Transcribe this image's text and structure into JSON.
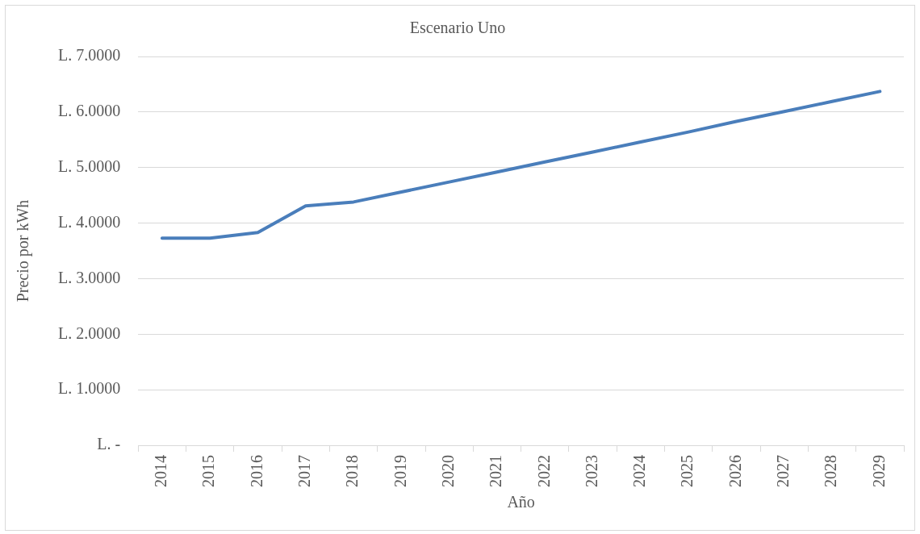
{
  "chart_data": {
    "type": "line",
    "title": "Escenario Uno",
    "xlabel": "Año",
    "ylabel": "Precio por kWh",
    "categories": [
      "2014",
      "2015",
      "2016",
      "2017",
      "2018",
      "2019",
      "2020",
      "2021",
      "2022",
      "2023",
      "2024",
      "2025",
      "2026",
      "2027",
      "2028",
      "2029"
    ],
    "series": [
      {
        "color": "#4a7ebb",
        "values": [
          3.73,
          3.73,
          3.83,
          4.31,
          4.38,
          4.56,
          4.74,
          4.92,
          5.1,
          5.28,
          5.46,
          5.64,
          5.83,
          6.01,
          6.19,
          6.37
        ]
      }
    ],
    "ylim": [
      0,
      7
    ],
    "yticks": [
      {
        "value": 0,
        "label": "L. -"
      },
      {
        "value": 1,
        "label": "L. 1.0000"
      },
      {
        "value": 2,
        "label": "L. 2.0000"
      },
      {
        "value": 3,
        "label": "L. 3.0000"
      },
      {
        "value": 4,
        "label": "L. 4.0000"
      },
      {
        "value": 5,
        "label": "L. 5.0000"
      },
      {
        "value": 6,
        "label": "L. 6.0000"
      },
      {
        "value": 7,
        "label": "L. 7.0000"
      }
    ],
    "grid": "y"
  }
}
